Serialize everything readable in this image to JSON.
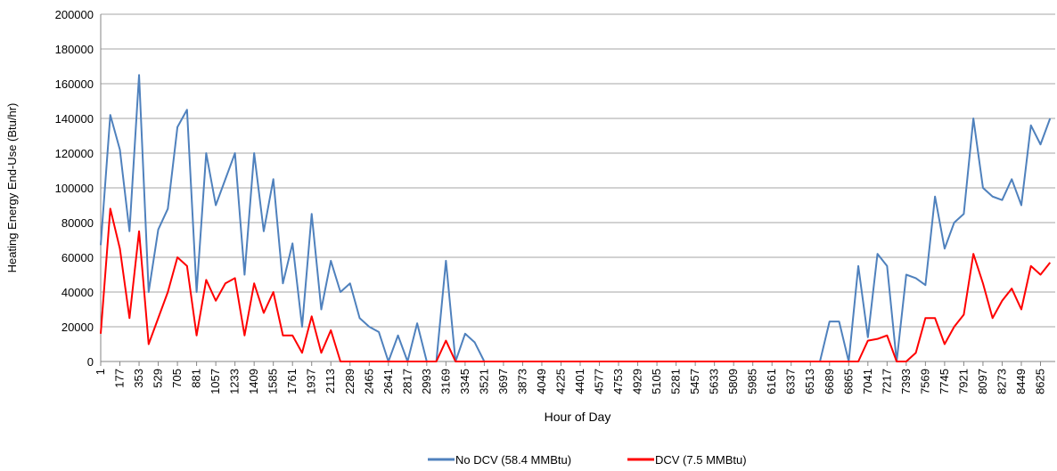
{
  "chart_data": {
    "type": "line",
    "xlabel": "Hour of Day",
    "ylabel": "Heating Energy End-Use (Btu/hr)",
    "x": [
      1,
      89,
      177,
      265,
      353,
      441,
      529,
      617,
      705,
      793,
      881,
      969,
      1057,
      1145,
      1233,
      1321,
      1409,
      1497,
      1585,
      1673,
      1761,
      1849,
      1937,
      2025,
      2113,
      2201,
      2289,
      2377,
      2465,
      2553,
      2641,
      2729,
      2817,
      2905,
      2993,
      3081,
      3169,
      3257,
      3345,
      3433,
      3521,
      3609,
      3697,
      3785,
      3873,
      3961,
      4049,
      4137,
      4225,
      4313,
      4401,
      4489,
      4577,
      4665,
      4753,
      4841,
      4929,
      5017,
      5105,
      5193,
      5281,
      5369,
      5457,
      5545,
      5633,
      5721,
      5809,
      5897,
      5985,
      6073,
      6161,
      6249,
      6337,
      6425,
      6513,
      6601,
      6689,
      6777,
      6865,
      6953,
      7041,
      7129,
      7217,
      7305,
      7393,
      7481,
      7569,
      7657,
      7745,
      7833,
      7921,
      8009,
      8097,
      8185,
      8273,
      8361,
      8449,
      8537,
      8625,
      8713
    ],
    "series": [
      {
        "name": "No DCV (58.4 MMBtu)",
        "color": "#4f81bd",
        "values": [
          67000,
          142000,
          122000,
          75000,
          165000,
          40000,
          76000,
          88000,
          135000,
          145000,
          40000,
          120000,
          90000,
          105000,
          120000,
          50000,
          120000,
          75000,
          105000,
          45000,
          68000,
          20000,
          85000,
          30000,
          58000,
          40000,
          45000,
          25000,
          20000,
          17000,
          0,
          15000,
          0,
          22000,
          0,
          0,
          58000,
          0,
          16000,
          11000,
          0,
          0,
          0,
          0,
          0,
          0,
          0,
          0,
          0,
          0,
          0,
          0,
          0,
          0,
          0,
          0,
          0,
          0,
          0,
          0,
          0,
          0,
          0,
          0,
          0,
          0,
          0,
          0,
          0,
          0,
          0,
          0,
          0,
          0,
          0,
          0,
          23000,
          23000,
          0,
          55000,
          14000,
          62000,
          55000,
          0,
          50000,
          48000,
          44000,
          95000,
          65000,
          80000,
          85000,
          140000,
          100000,
          95000,
          93000,
          105000,
          90000,
          136000,
          125000,
          140000
        ]
      },
      {
        "name": "DCV (7.5 MMBtu)",
        "color": "#ff0000",
        "values": [
          16000,
          88000,
          65000,
          25000,
          75000,
          10000,
          25000,
          40000,
          60000,
          55000,
          15000,
          47000,
          35000,
          45000,
          48000,
          15000,
          45000,
          28000,
          40000,
          15000,
          15000,
          5000,
          26000,
          5000,
          18000,
          0,
          0,
          0,
          0,
          0,
          0,
          0,
          0,
          0,
          0,
          0,
          12000,
          0,
          0,
          0,
          0,
          0,
          0,
          0,
          0,
          0,
          0,
          0,
          0,
          0,
          0,
          0,
          0,
          0,
          0,
          0,
          0,
          0,
          0,
          0,
          0,
          0,
          0,
          0,
          0,
          0,
          0,
          0,
          0,
          0,
          0,
          0,
          0,
          0,
          0,
          0,
          0,
          0,
          0,
          0,
          12000,
          13000,
          15000,
          0,
          0,
          5000,
          25000,
          25000,
          10000,
          20000,
          27000,
          62000,
          45000,
          25000,
          35000,
          42000,
          30000,
          55000,
          50000,
          57000
        ]
      }
    ],
    "xlim": [
      1,
      8760
    ],
    "xticks": [
      1,
      177,
      353,
      529,
      705,
      881,
      1057,
      1233,
      1409,
      1585,
      1761,
      1937,
      2113,
      2289,
      2465,
      2641,
      2817,
      2993,
      3169,
      3345,
      3521,
      3697,
      3873,
      4049,
      4225,
      4401,
      4577,
      4753,
      4929,
      5105,
      5281,
      5457,
      5633,
      5809,
      5985,
      6161,
      6337,
      6513,
      6689,
      6865,
      7041,
      7217,
      7393,
      7569,
      7745,
      7921,
      8097,
      8273,
      8449,
      8625
    ],
    "ylim": [
      0,
      200000
    ],
    "yticks": [
      0,
      20000,
      40000,
      60000,
      80000,
      100000,
      120000,
      140000,
      160000,
      180000,
      200000
    ],
    "grid": true,
    "legend": "bottom"
  }
}
